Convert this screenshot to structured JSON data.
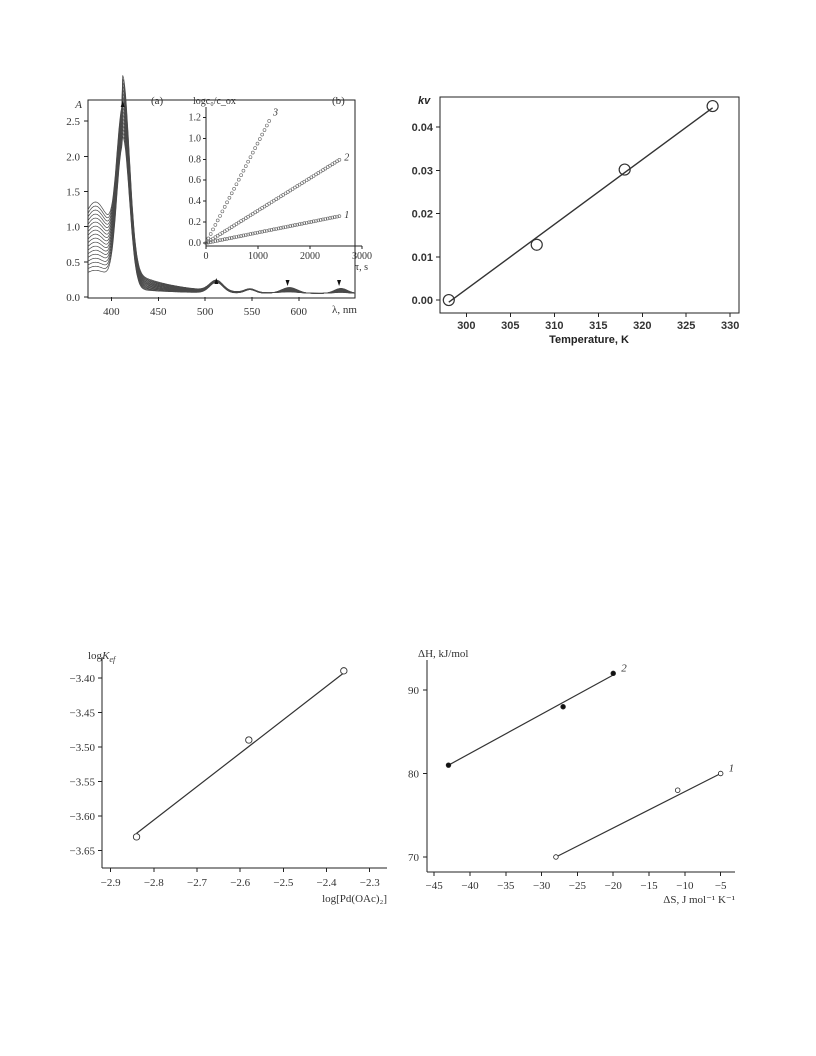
{
  "chart_data": [
    {
      "type": "line",
      "panel_label": "(a)",
      "ylabel": "A",
      "xlabel": "λ, nm",
      "xlim": [
        375,
        660
      ],
      "ylim": [
        0,
        2.8
      ],
      "xticks": [
        400,
        450,
        500,
        550,
        600
      ],
      "yticks": [
        0.0,
        0.5,
        1.0,
        1.5,
        2.0,
        2.5
      ],
      "peak_nm": 412,
      "peak_absorbance_range": [
        2.15,
        2.72
      ],
      "plateau_absorbance_380nm_range": [
        0.38,
        1.35
      ],
      "curve_count": 18,
      "arrows": [
        {
          "x": 412,
          "direction": "up"
        },
        {
          "x": 512,
          "direction": "up"
        },
        {
          "x": 588,
          "direction": "down"
        },
        {
          "x": 643,
          "direction": "down"
        }
      ],
      "inset": {
        "type": "scatter",
        "panel_label": "(b)",
        "ylabel": "logc₀/c_ox",
        "xlabel": "τ, s",
        "xlim": [
          0,
          3000
        ],
        "ylim": [
          0,
          1.3
        ],
        "xticks": [
          0,
          1000,
          2000,
          3000
        ],
        "yticks": [
          0.0,
          0.2,
          0.4,
          0.6,
          0.8,
          1.0,
          1.2
        ],
        "series": [
          {
            "name": "1",
            "slope": 0.0001,
            "x_max": 2600
          },
          {
            "name": "2",
            "slope": 0.00031,
            "x_max": 2600
          },
          {
            "name": "3",
            "slope": 0.00096,
            "x_max": 1250
          }
        ]
      }
    },
    {
      "type": "scatter",
      "xlabel": "Temperature, K",
      "ylabel": "kv",
      "xlim": [
        297,
        331
      ],
      "ylim": [
        -0.003,
        0.047
      ],
      "xticks": [
        300,
        305,
        310,
        315,
        320,
        325,
        330
      ],
      "yticks": [
        0.0,
        0.01,
        0.02,
        0.03,
        0.04
      ],
      "ytick_labels": [
        "0.00",
        "0.01",
        "0.02",
        "0.03",
        "0.04"
      ],
      "points": [
        [
          298,
          0.0
        ],
        [
          308,
          0.0128
        ],
        [
          318,
          0.0302
        ],
        [
          328,
          0.0449
        ]
      ],
      "fit": [
        [
          298,
          -0.0005
        ],
        [
          328,
          0.0445
        ]
      ]
    },
    {
      "type": "scatter",
      "ylabel": "logK_ef",
      "xlabel": "log[Pd(OAc)₂]",
      "xlim": [
        -2.92,
        -2.26
      ],
      "ylim": [
        -3.675,
        -3.37
      ],
      "xticks": [
        -2.9,
        -2.8,
        -2.7,
        -2.6,
        -2.5,
        -2.4,
        -2.3
      ],
      "xtick_labels": [
        "−2.9",
        "−2.8",
        "−2.7",
        "−2.6",
        "−2.5",
        "−2.4",
        "−2.3"
      ],
      "yticks": [
        -3.4,
        -3.45,
        -3.5,
        -3.55,
        -3.6,
        -3.65
      ],
      "ytick_labels": [
        "−3.40",
        "−3.45",
        "−3.50",
        "−3.55",
        "−3.60",
        "−3.65"
      ],
      "points": [
        [
          -2.84,
          -3.63
        ],
        [
          -2.58,
          -3.49
        ],
        [
          -2.36,
          -3.39
        ]
      ],
      "fit": [
        [
          -2.84,
          -3.625
        ],
        [
          -2.36,
          -3.393
        ]
      ]
    },
    {
      "type": "scatter",
      "ylabel": "ΔH, kJ/mol",
      "xlabel": "ΔS, J mol⁻¹ K⁻¹",
      "xlim": [
        -46,
        -3
      ],
      "ylim": [
        68.2,
        93.6
      ],
      "xticks": [
        -45,
        -40,
        -35,
        -30,
        -25,
        -20,
        -15,
        -10,
        -5
      ],
      "xtick_labels": [
        "−45",
        "−40",
        "−35",
        "−30",
        "−25",
        "−20",
        "−15",
        "−10",
        "−5"
      ],
      "yticks": [
        70,
        80,
        90
      ],
      "series": [
        {
          "name": "1",
          "marker": "open",
          "points": [
            [
              -28,
              70
            ],
            [
              -11,
              78
            ],
            [
              -5,
              80
            ]
          ],
          "fit": [
            [
              -28,
              70
            ],
            [
              -5,
              80
            ]
          ]
        },
        {
          "name": "2",
          "marker": "filled",
          "points": [
            [
              -43,
              81
            ],
            [
              -27,
              88
            ],
            [
              -20,
              92
            ]
          ],
          "fit": [
            [
              -43,
              81
            ],
            [
              -20,
              91.8
            ]
          ]
        }
      ]
    }
  ]
}
